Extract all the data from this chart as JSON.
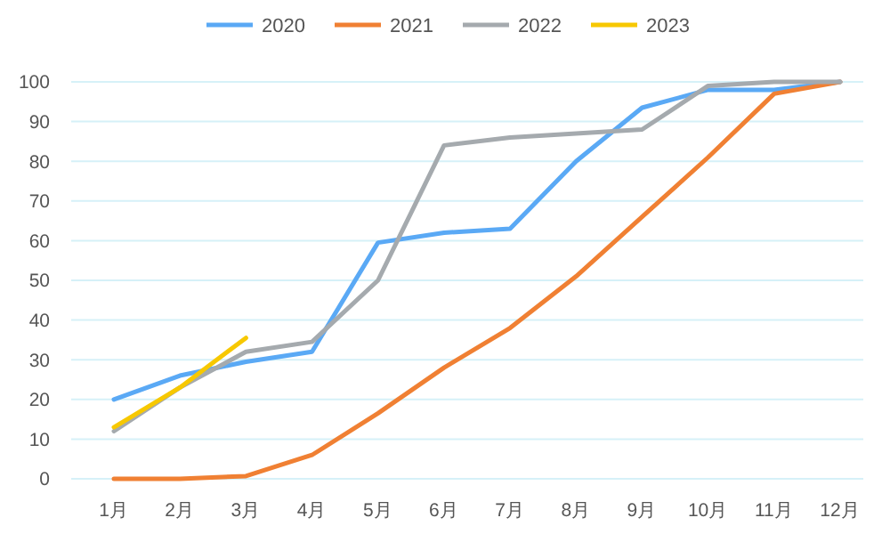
{
  "chart_data": {
    "type": "line",
    "categories": [
      "1月",
      "2月",
      "3月",
      "4月",
      "5月",
      "6月",
      "7月",
      "8月",
      "9月",
      "10月",
      "11月",
      "12月"
    ],
    "ylim": [
      0,
      100
    ],
    "yticks": [
      0,
      10,
      20,
      30,
      40,
      50,
      60,
      70,
      80,
      90,
      100
    ],
    "grid": "y",
    "legend": "top",
    "marker": "none",
    "line_style": "solid",
    "series": [
      {
        "name": "2020",
        "color": "#5aa9f5",
        "values": [
          20,
          26,
          29.5,
          32,
          59.5,
          62,
          63,
          80,
          93.5,
          98,
          98,
          100
        ]
      },
      {
        "name": "2021",
        "color": "#f08033",
        "values": [
          0,
          0,
          0.7,
          6,
          16.5,
          28,
          38,
          51,
          66,
          81,
          97,
          100
        ]
      },
      {
        "name": "2022",
        "color": "#a5aaae",
        "values": [
          12,
          23,
          32,
          34.5,
          50,
          84,
          86,
          87,
          88,
          99,
          100,
          100
        ]
      },
      {
        "name": "2023",
        "color": "#f7c800",
        "values": [
          13,
          23,
          35.5,
          null,
          null,
          null,
          null,
          null,
          null,
          null,
          null,
          null
        ]
      }
    ]
  }
}
